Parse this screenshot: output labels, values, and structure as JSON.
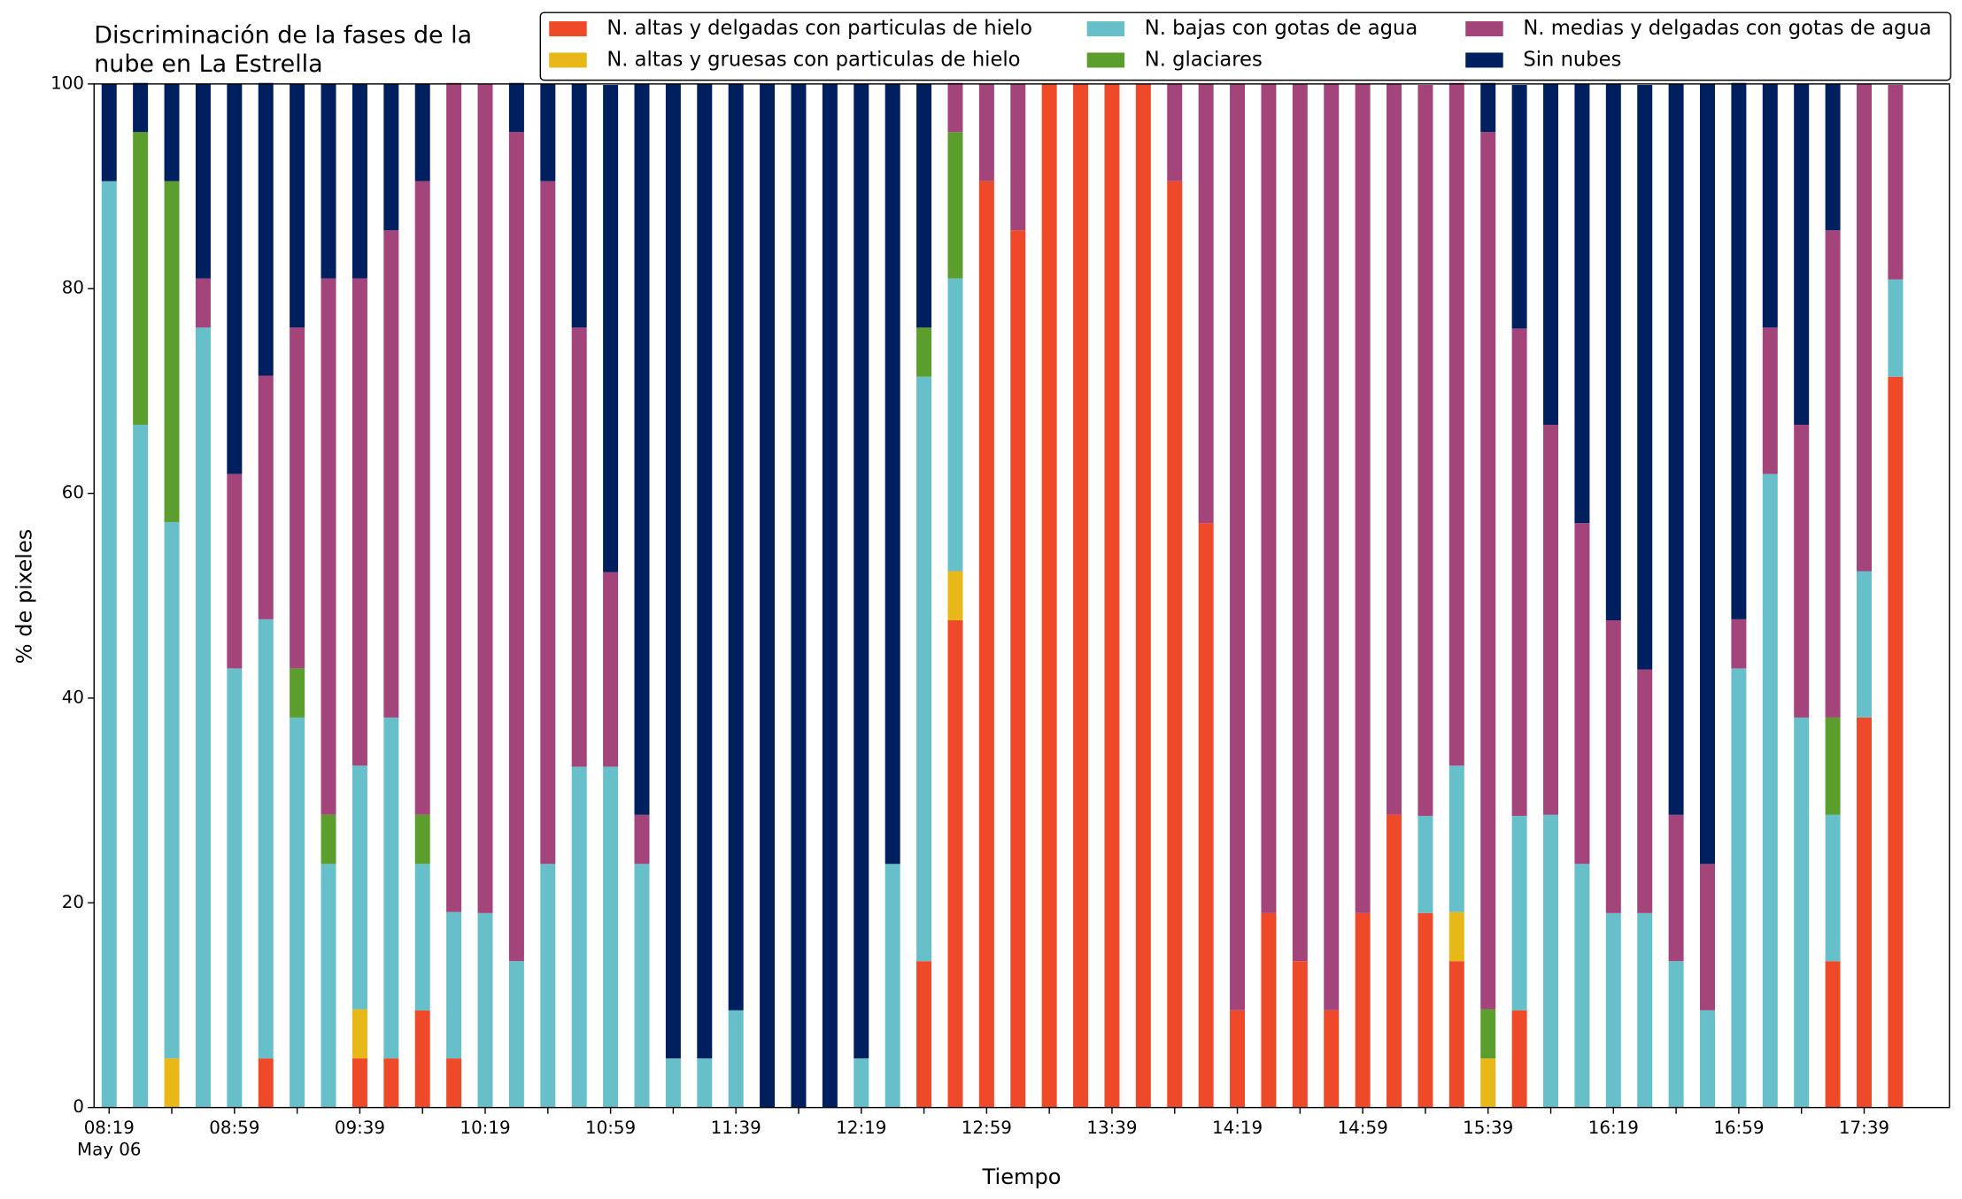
{
  "chart_data": {
    "type": "stacked_bar",
    "title": [
      "Discriminación de la fases de la",
      "nube en La Estrella"
    ],
    "xlabel": "Tiempo",
    "ylabel": "% de pixeles",
    "date_label": "May 06",
    "categories": [
      "08:19",
      null,
      null,
      null,
      "08:59",
      null,
      null,
      null,
      "09:39",
      null,
      null,
      null,
      "10:19",
      null,
      null,
      null,
      "10:59",
      null,
      null,
      null,
      "11:39",
      null,
      null,
      null,
      "12:19",
      null,
      null,
      null,
      "12:59",
      null,
      null,
      null,
      "13:39",
      null,
      null,
      null,
      "14:19",
      null,
      null,
      null,
      "14:59",
      null,
      null,
      null,
      "15:39",
      null,
      null,
      null,
      "16:19",
      null,
      null,
      null,
      "16:59",
      null,
      null,
      null,
      "17:39",
      null
    ],
    "ylim": [
      0,
      100
    ],
    "yticks": [
      0,
      20,
      40,
      60,
      80,
      100
    ],
    "legend": "top-right",
    "series": [
      {
        "name": "N. altas y delgadas con particulas de hielo",
        "color": "#ee4a2a",
        "values": [
          0,
          0,
          0,
          0,
          0,
          4.8,
          0,
          0,
          4.8,
          4.8,
          9.5,
          4.8,
          0,
          0,
          0,
          0,
          0,
          0,
          0,
          0,
          0,
          0,
          0,
          0,
          0,
          0,
          14.3,
          47.6,
          90.5,
          85.7,
          100,
          100,
          100,
          100,
          90.5,
          57.1,
          9.5,
          19,
          14.3,
          9.5,
          19,
          28.6,
          19,
          14.3,
          0,
          9.5,
          0,
          0,
          0,
          0,
          0,
          0,
          0,
          0,
          0,
          14.3,
          38.1,
          71.4
        ]
      },
      {
        "name": "N. altas y gruesas con particulas de hielo",
        "color": "#e8b818",
        "values": [
          0,
          0,
          4.8,
          0,
          0,
          0,
          0,
          0,
          4.8,
          0,
          0,
          0,
          0,
          0,
          0,
          0,
          0,
          0,
          0,
          0,
          0,
          0,
          0,
          0,
          0,
          0,
          0,
          4.8,
          0,
          0,
          0,
          0,
          0,
          0,
          0,
          0,
          0,
          0,
          0,
          0,
          0,
          0,
          0,
          4.8,
          4.8,
          0,
          0,
          0,
          0,
          0,
          0,
          0,
          0,
          0,
          0,
          0,
          0,
          0
        ]
      },
      {
        "name": "N. bajas con gotas de agua",
        "color": "#67bfca",
        "values": [
          90.5,
          66.7,
          52.4,
          76.2,
          42.9,
          42.9,
          38.1,
          23.8,
          23.8,
          33.3,
          14.3,
          14.3,
          19,
          14.3,
          23.8,
          33.3,
          33.3,
          23.8,
          4.8,
          4.8,
          9.5,
          0,
          0,
          0,
          4.8,
          23.8,
          57.1,
          28.6,
          0,
          0,
          0,
          0,
          0,
          0,
          0,
          0,
          0,
          0,
          0,
          0,
          0,
          0,
          9.5,
          14.3,
          0,
          19,
          28.6,
          23.8,
          19,
          19,
          14.3,
          9.5,
          42.9,
          61.9,
          38.1,
          14.3,
          14.3,
          9.5
        ]
      },
      {
        "name": "N. glaciares",
        "color": "#5c9e2e",
        "values": [
          0,
          28.6,
          33.3,
          0,
          0,
          0,
          4.8,
          4.8,
          0,
          0,
          4.8,
          0,
          0,
          0,
          0,
          0,
          0,
          0,
          0,
          0,
          0,
          0,
          0,
          0,
          0,
          0,
          4.8,
          14.3,
          0,
          0,
          0,
          0,
          0,
          0,
          0,
          0,
          0,
          0,
          0,
          0,
          0,
          0,
          0,
          0,
          4.8,
          0,
          0,
          0,
          0,
          0,
          0,
          0,
          0,
          0,
          0,
          9.5,
          0,
          0
        ]
      },
      {
        "name": "N. medias y delgadas con gotas de agua",
        "color": "#a3447a",
        "values": [
          0,
          0,
          0,
          4.8,
          19,
          23.8,
          33.3,
          52.4,
          47.6,
          47.6,
          61.9,
          81,
          81,
          81,
          66.7,
          42.9,
          19,
          4.8,
          0,
          0,
          0,
          0,
          0,
          0,
          0,
          0,
          0,
          4.8,
          9.5,
          14.3,
          0,
          0,
          0,
          0,
          9.5,
          42.9,
          90.5,
          81,
          85.7,
          90.5,
          81,
          71.4,
          71.4,
          66.7,
          85.7,
          47.6,
          38.1,
          33.3,
          28.6,
          23.8,
          14.3,
          14.3,
          4.8,
          14.3,
          28.6,
          47.6,
          47.6,
          19
        ]
      },
      {
        "name": "Sin nubes",
        "color": "#001f5f",
        "values": [
          9.5,
          4.8,
          9.5,
          19,
          38.1,
          28.6,
          23.8,
          19,
          19,
          14.3,
          9.5,
          0,
          0,
          4.8,
          9.5,
          23.8,
          47.6,
          71.4,
          95.2,
          95.2,
          90.5,
          100,
          100,
          100,
          95.2,
          76.2,
          23.8,
          0,
          0,
          0,
          0,
          0,
          0,
          0,
          0,
          0,
          0,
          0,
          0,
          0,
          0,
          0,
          0,
          0,
          4.8,
          23.8,
          33.3,
          42.9,
          52.4,
          57.1,
          71.4,
          76.2,
          52.4,
          23.8,
          33.3,
          14.3,
          0,
          0
        ]
      }
    ]
  }
}
